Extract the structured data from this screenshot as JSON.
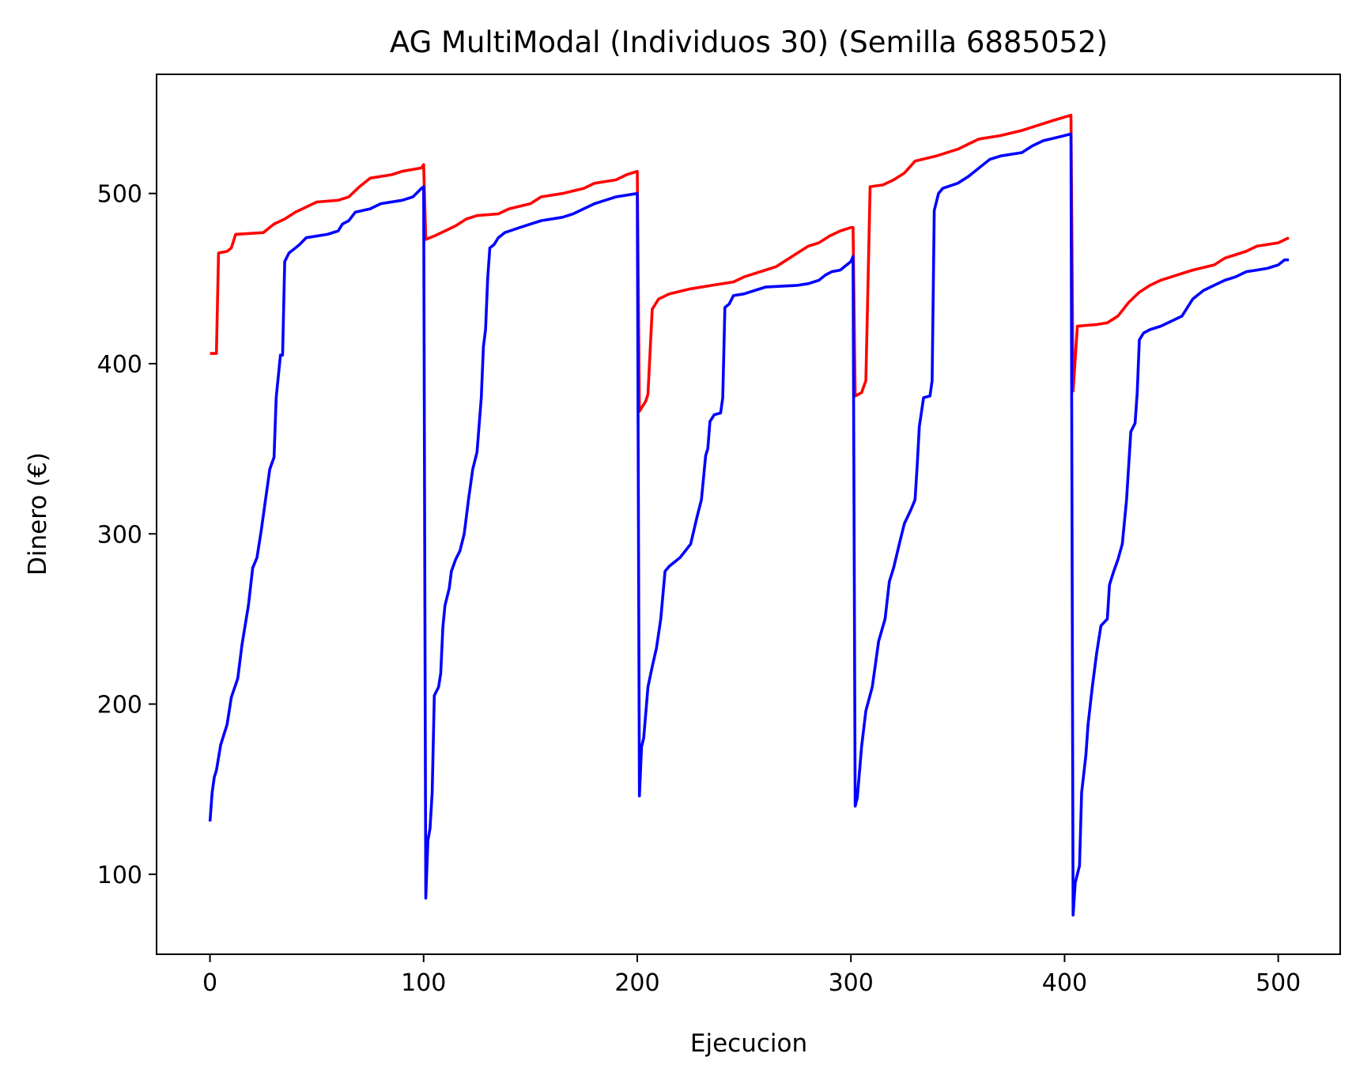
{
  "chart_data": {
    "type": "line",
    "title": "AG MultiModal (Individuos 30) (Semilla 6885052)",
    "xlabel": "Ejecucion",
    "ylabel": "Dinero (€)",
    "xlim": [
      -25,
      529
    ],
    "ylim": [
      53,
      570
    ],
    "xticks": [
      0,
      100,
      200,
      300,
      400,
      500
    ],
    "yticks": [
      100,
      200,
      300,
      400,
      500
    ],
    "grid": false,
    "legend": "none",
    "series": [
      {
        "color": "#ff0000",
        "points": [
          [
            0,
            406
          ],
          [
            3,
            406
          ],
          [
            4,
            465
          ],
          [
            8,
            466
          ],
          [
            10,
            468
          ],
          [
            12,
            476
          ],
          [
            25,
            477
          ],
          [
            30,
            482
          ],
          [
            35,
            485
          ],
          [
            40,
            489
          ],
          [
            45,
            492
          ],
          [
            50,
            495
          ],
          [
            60,
            496
          ],
          [
            65,
            498
          ],
          [
            70,
            504
          ],
          [
            75,
            509
          ],
          [
            85,
            511
          ],
          [
            90,
            513
          ],
          [
            99,
            515
          ],
          [
            100,
            517
          ],
          [
            101,
            473
          ],
          [
            105,
            475
          ],
          [
            110,
            478
          ],
          [
            115,
            481
          ],
          [
            120,
            485
          ],
          [
            125,
            487
          ],
          [
            135,
            488
          ],
          [
            140,
            491
          ],
          [
            150,
            494
          ],
          [
            155,
            498
          ],
          [
            165,
            500
          ],
          [
            175,
            503
          ],
          [
            180,
            506
          ],
          [
            190,
            508
          ],
          [
            195,
            511
          ],
          [
            200,
            513
          ],
          [
            201,
            372
          ],
          [
            204,
            378
          ],
          [
            205,
            382
          ],
          [
            207,
            432
          ],
          [
            210,
            438
          ],
          [
            215,
            441
          ],
          [
            225,
            444
          ],
          [
            235,
            446
          ],
          [
            245,
            448
          ],
          [
            250,
            451
          ],
          [
            260,
            455
          ],
          [
            265,
            457
          ],
          [
            270,
            461
          ],
          [
            275,
            465
          ],
          [
            280,
            469
          ],
          [
            285,
            471
          ],
          [
            290,
            475
          ],
          [
            295,
            478
          ],
          [
            300,
            480
          ],
          [
            301,
            480
          ],
          [
            302,
            381
          ],
          [
            305,
            383
          ],
          [
            307,
            390
          ],
          [
            309,
            504
          ],
          [
            315,
            505
          ],
          [
            320,
            508
          ],
          [
            325,
            512
          ],
          [
            330,
            519
          ],
          [
            340,
            522
          ],
          [
            350,
            526
          ],
          [
            355,
            529
          ],
          [
            360,
            532
          ],
          [
            370,
            534
          ],
          [
            380,
            537
          ],
          [
            385,
            539
          ],
          [
            390,
            541
          ],
          [
            395,
            543
          ],
          [
            403,
            546
          ],
          [
            404,
            384
          ],
          [
            406,
            422
          ],
          [
            415,
            423
          ],
          [
            420,
            424
          ],
          [
            425,
            428
          ],
          [
            430,
            436
          ],
          [
            435,
            442
          ],
          [
            440,
            446
          ],
          [
            445,
            449
          ],
          [
            450,
            451
          ],
          [
            455,
            453
          ],
          [
            460,
            455
          ],
          [
            470,
            458
          ],
          [
            475,
            462
          ],
          [
            485,
            466
          ],
          [
            490,
            469
          ],
          [
            500,
            471
          ],
          [
            505,
            474
          ]
        ]
      },
      {
        "color": "#0000ff",
        "points": [
          [
            0,
            131
          ],
          [
            1,
            148
          ],
          [
            2,
            157
          ],
          [
            3,
            161
          ],
          [
            5,
            176
          ],
          [
            8,
            188
          ],
          [
            10,
            204
          ],
          [
            13,
            215
          ],
          [
            15,
            235
          ],
          [
            18,
            258
          ],
          [
            20,
            280
          ],
          [
            22,
            286
          ],
          [
            24,
            302
          ],
          [
            26,
            320
          ],
          [
            28,
            338
          ],
          [
            30,
            345
          ],
          [
            31,
            380
          ],
          [
            33,
            405
          ],
          [
            34,
            405
          ],
          [
            35,
            460
          ],
          [
            37,
            465
          ],
          [
            40,
            468
          ],
          [
            42,
            470
          ],
          [
            45,
            474
          ],
          [
            55,
            476
          ],
          [
            60,
            478
          ],
          [
            62,
            482
          ],
          [
            65,
            484
          ],
          [
            68,
            489
          ],
          [
            75,
            491
          ],
          [
            80,
            494
          ],
          [
            90,
            496
          ],
          [
            95,
            498
          ],
          [
            99,
            503
          ],
          [
            100,
            504
          ],
          [
            101,
            86
          ],
          [
            102,
            120
          ],
          [
            103,
            127
          ],
          [
            104,
            148
          ],
          [
            105,
            205
          ],
          [
            107,
            210
          ],
          [
            108,
            218
          ],
          [
            109,
            245
          ],
          [
            110,
            258
          ],
          [
            112,
            268
          ],
          [
            113,
            278
          ],
          [
            115,
            285
          ],
          [
            117,
            290
          ],
          [
            119,
            300
          ],
          [
            121,
            320
          ],
          [
            123,
            338
          ],
          [
            125,
            348
          ],
          [
            127,
            380
          ],
          [
            128,
            410
          ],
          [
            129,
            420
          ],
          [
            130,
            450
          ],
          [
            131,
            468
          ],
          [
            133,
            470
          ],
          [
            135,
            474
          ],
          [
            138,
            477
          ],
          [
            145,
            480
          ],
          [
            150,
            482
          ],
          [
            155,
            484
          ],
          [
            165,
            486
          ],
          [
            170,
            488
          ],
          [
            180,
            494
          ],
          [
            185,
            496
          ],
          [
            190,
            498
          ],
          [
            200,
            500
          ],
          [
            201,
            146
          ],
          [
            202,
            175
          ],
          [
            203,
            180
          ],
          [
            205,
            210
          ],
          [
            207,
            222
          ],
          [
            209,
            233
          ],
          [
            211,
            250
          ],
          [
            213,
            278
          ],
          [
            215,
            281
          ],
          [
            220,
            286
          ],
          [
            225,
            294
          ],
          [
            228,
            310
          ],
          [
            230,
            320
          ],
          [
            232,
            346
          ],
          [
            233,
            350
          ],
          [
            234,
            366
          ],
          [
            236,
            370
          ],
          [
            239,
            371
          ],
          [
            240,
            380
          ],
          [
            241,
            433
          ],
          [
            243,
            435
          ],
          [
            245,
            440
          ],
          [
            250,
            441
          ],
          [
            255,
            443
          ],
          [
            260,
            445
          ],
          [
            275,
            446
          ],
          [
            280,
            447
          ],
          [
            285,
            449
          ],
          [
            288,
            452
          ],
          [
            291,
            454
          ],
          [
            295,
            455
          ],
          [
            300,
            460
          ],
          [
            301,
            463
          ],
          [
            302,
            140
          ],
          [
            303,
            145
          ],
          [
            305,
            175
          ],
          [
            307,
            196
          ],
          [
            310,
            210
          ],
          [
            313,
            237
          ],
          [
            316,
            250
          ],
          [
            318,
            272
          ],
          [
            320,
            280
          ],
          [
            323,
            296
          ],
          [
            325,
            306
          ],
          [
            328,
            314
          ],
          [
            330,
            320
          ],
          [
            331,
            340
          ],
          [
            332,
            363
          ],
          [
            334,
            380
          ],
          [
            337,
            381
          ],
          [
            338,
            390
          ],
          [
            339,
            490
          ],
          [
            341,
            500
          ],
          [
            343,
            503
          ],
          [
            350,
            506
          ],
          [
            355,
            510
          ],
          [
            360,
            515
          ],
          [
            365,
            520
          ],
          [
            370,
            522
          ],
          [
            380,
            524
          ],
          [
            385,
            528
          ],
          [
            390,
            531
          ],
          [
            400,
            534
          ],
          [
            403,
            535
          ],
          [
            404,
            76
          ],
          [
            405,
            95
          ],
          [
            407,
            105
          ],
          [
            408,
            148
          ],
          [
            410,
            170
          ],
          [
            411,
            188
          ],
          [
            413,
            210
          ],
          [
            415,
            230
          ],
          [
            417,
            246
          ],
          [
            420,
            250
          ],
          [
            421,
            270
          ],
          [
            423,
            278
          ],
          [
            425,
            285
          ],
          [
            427,
            294
          ],
          [
            429,
            320
          ],
          [
            431,
            360
          ],
          [
            433,
            365
          ],
          [
            434,
            383
          ],
          [
            435,
            414
          ],
          [
            437,
            418
          ],
          [
            440,
            420
          ],
          [
            445,
            422
          ],
          [
            450,
            425
          ],
          [
            455,
            428
          ],
          [
            458,
            434
          ],
          [
            460,
            438
          ],
          [
            465,
            443
          ],
          [
            470,
            446
          ],
          [
            475,
            449
          ],
          [
            480,
            451
          ],
          [
            485,
            454
          ],
          [
            490,
            455
          ],
          [
            495,
            456
          ],
          [
            500,
            458
          ],
          [
            503,
            461
          ],
          [
            505,
            461
          ]
        ]
      }
    ]
  }
}
